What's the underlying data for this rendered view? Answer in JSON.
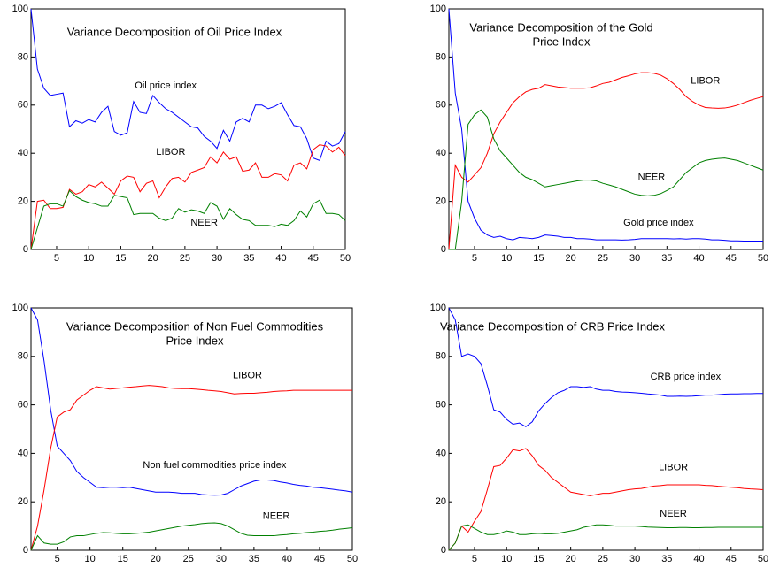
{
  "chart_data": [
    {
      "type": "line",
      "title": [
        "Variance Decomposition of Oil Price Index"
      ],
      "x": [
        1,
        2,
        3,
        4,
        5,
        6,
        7,
        8,
        9,
        10,
        11,
        12,
        13,
        14,
        15,
        16,
        17,
        18,
        19,
        20,
        21,
        22,
        23,
        24,
        25,
        26,
        27,
        28,
        29,
        30,
        31,
        32,
        33,
        34,
        35,
        36,
        37,
        38,
        39,
        40,
        41,
        42,
        43,
        44,
        45,
        46,
        47,
        48,
        49,
        50
      ],
      "xlim": [
        1,
        50
      ],
      "xticks": [
        5,
        10,
        15,
        20,
        25,
        30,
        35,
        40,
        45,
        50
      ],
      "ylim": [
        0,
        100
      ],
      "yticks": [
        0,
        20,
        40,
        60,
        80,
        100
      ],
      "series": [
        {
          "name": "Oil price index",
          "color": "#0000ff",
          "values": [
            100,
            75,
            67,
            64,
            64.5,
            65,
            51,
            53.5,
            52.5,
            54,
            53,
            57,
            59.5,
            49,
            47.5,
            48.5,
            61.5,
            57,
            56.5,
            64,
            61,
            58.5,
            57,
            55,
            53,
            51,
            50.5,
            47,
            45,
            42,
            49.5,
            45,
            53,
            54.5,
            53,
            60,
            60,
            58.5,
            59.5,
            61,
            56,
            51.5,
            51,
            46,
            38,
            37,
            45,
            43,
            44,
            49
          ]
        },
        {
          "name": "LIBOR",
          "color": "#ff0000",
          "values": [
            0,
            20,
            20.5,
            17,
            17,
            17.5,
            25,
            23,
            24,
            27,
            26,
            28,
            25.5,
            23,
            28.5,
            30.5,
            30,
            24,
            27.5,
            28.5,
            21.5,
            26,
            29.5,
            30,
            28,
            32,
            33,
            34,
            38.5,
            36,
            40.5,
            37.5,
            38.5,
            32.5,
            33,
            36,
            30,
            30,
            31.5,
            31,
            28.5,
            35,
            36,
            33.5,
            41.5,
            43.5,
            43,
            40.5,
            42.5,
            39
          ]
        },
        {
          "name": "NEER",
          "color": "#008000",
          "values": [
            0,
            9,
            18,
            19,
            19,
            18,
            24.5,
            22,
            20.5,
            19.5,
            19,
            18,
            18,
            22.5,
            22,
            21.5,
            14.5,
            15,
            15,
            15,
            13,
            12,
            13,
            17,
            15.5,
            16.5,
            16,
            15,
            19.5,
            18,
            12.5,
            17,
            14.5,
            12.5,
            12,
            10,
            10,
            10,
            9.5,
            10.5,
            10,
            12,
            16,
            13.5,
            19,
            20.5,
            15,
            15,
            14.5,
            12
          ]
        }
      ]
    },
    {
      "type": "line",
      "title": [
        "Variance Decomposition of the Gold",
        "Price Index"
      ],
      "x": [
        1,
        2,
        3,
        4,
        5,
        6,
        7,
        8,
        9,
        10,
        11,
        12,
        13,
        14,
        15,
        16,
        17,
        18,
        19,
        20,
        21,
        22,
        23,
        24,
        25,
        26,
        27,
        28,
        29,
        30,
        31,
        32,
        33,
        34,
        35,
        36,
        37,
        38,
        39,
        40,
        41,
        42,
        43,
        44,
        45,
        46,
        47,
        48,
        49,
        50
      ],
      "xlim": [
        1,
        50
      ],
      "xticks": [
        5,
        10,
        15,
        20,
        25,
        30,
        35,
        40,
        45,
        50
      ],
      "ylim": [
        0,
        100
      ],
      "yticks": [
        0,
        20,
        40,
        60,
        80,
        100
      ],
      "series": [
        {
          "name": "Gold price index",
          "color": "#0000ff",
          "values": [
            100,
            65,
            50,
            20,
            13,
            8,
            6,
            5,
            5.5,
            4.5,
            4,
            5,
            4.8,
            4.5,
            5,
            6,
            5.8,
            5.5,
            5,
            5,
            4.5,
            4.5,
            4.3,
            4,
            4,
            4,
            4,
            3.9,
            4,
            4.2,
            4.5,
            4.5,
            4.5,
            4.5,
            4.5,
            4.4,
            4.5,
            4.3,
            4.5,
            4.5,
            4.3,
            4,
            4,
            3.8,
            3.6,
            3.6,
            3.5,
            3.5,
            3.5,
            3.5
          ]
        },
        {
          "name": "LIBOR",
          "color": "#ff0000",
          "values": [
            0,
            35,
            30,
            28,
            31,
            34,
            40,
            48,
            53,
            57,
            61,
            63.5,
            65.5,
            66.5,
            67,
            68.5,
            68,
            67.5,
            67.3,
            67,
            67,
            67,
            67.2,
            68,
            69,
            69.5,
            70.5,
            71.5,
            72.2,
            73,
            73.5,
            73.5,
            73.2,
            72.5,
            71,
            69,
            66.5,
            63.5,
            61.5,
            60,
            59,
            58.8,
            58.7,
            58.8,
            59.3,
            60,
            61,
            62,
            62.8,
            63.5
          ]
        },
        {
          "name": "NEER",
          "color": "#008000",
          "values": [
            0,
            0,
            20,
            52,
            56,
            58,
            55,
            46,
            41,
            38,
            35,
            32,
            30,
            29,
            27.5,
            26,
            26.5,
            27,
            27.5,
            28,
            28.5,
            28.8,
            28.8,
            28.5,
            27.5,
            26.8,
            26,
            25,
            24,
            23,
            22.5,
            22.3,
            22.5,
            23.2,
            24.5,
            26,
            29,
            32,
            34,
            36,
            37,
            37.5,
            37.8,
            38,
            37.5,
            37,
            36,
            35,
            34,
            33
          ]
        }
      ]
    },
    {
      "type": "line",
      "title": [
        "Variance Decomposition of Non Fuel Commodities",
        "Price Index"
      ],
      "x": [
        1,
        2,
        3,
        4,
        5,
        6,
        7,
        8,
        9,
        10,
        11,
        12,
        13,
        14,
        15,
        16,
        17,
        18,
        19,
        20,
        21,
        22,
        23,
        24,
        25,
        26,
        27,
        28,
        29,
        30,
        31,
        32,
        33,
        34,
        35,
        36,
        37,
        38,
        39,
        40,
        41,
        42,
        43,
        44,
        45,
        46,
        47,
        48,
        49,
        50
      ],
      "xlim": [
        1,
        50
      ],
      "xticks": [
        5,
        10,
        15,
        20,
        25,
        30,
        35,
        40,
        45,
        50
      ],
      "ylim": [
        0,
        100
      ],
      "yticks": [
        0,
        20,
        40,
        60,
        80,
        100
      ],
      "series": [
        {
          "name": "Non fuel commodities price index",
          "color": "#0000ff",
          "values": [
            100,
            95,
            78,
            58,
            43,
            40,
            37,
            32.5,
            30,
            28,
            26,
            25.8,
            26,
            26,
            25.8,
            26,
            25.5,
            25,
            24.5,
            24,
            24,
            24,
            23.8,
            23.5,
            23.5,
            23.5,
            23,
            22.8,
            22.7,
            22.8,
            23.5,
            25,
            26.5,
            27.5,
            28.5,
            29,
            29,
            28.8,
            28.2,
            27.8,
            27.2,
            26.8,
            26.5,
            26,
            25.8,
            25.5,
            25.2,
            24.8,
            24.5,
            24
          ]
        },
        {
          "name": "LIBOR",
          "color": "#ff0000",
          "values": [
            0,
            10,
            25,
            42,
            55,
            57,
            58,
            62,
            64,
            66,
            67.5,
            67,
            66.5,
            66.8,
            67,
            67.3,
            67.5,
            67.8,
            68,
            67.8,
            67.5,
            67,
            66.8,
            66.7,
            66.7,
            66.5,
            66.3,
            66,
            65.8,
            65.5,
            65,
            64.5,
            64.7,
            64.8,
            64.8,
            65,
            65.2,
            65.5,
            65.7,
            65.8,
            66,
            66,
            66,
            66,
            66,
            66,
            66,
            66,
            66,
            66
          ]
        },
        {
          "name": "NEER",
          "color": "#008000",
          "values": [
            0,
            6,
            3,
            2.5,
            2.5,
            3.5,
            5.5,
            6,
            6,
            6.5,
            7,
            7.3,
            7.2,
            7,
            6.8,
            6.8,
            7,
            7.2,
            7.5,
            8,
            8.5,
            9,
            9.5,
            10,
            10.3,
            10.6,
            11,
            11.2,
            11.3,
            11,
            10,
            8.5,
            7,
            6.2,
            6,
            6,
            6,
            6,
            6.3,
            6.5,
            6.8,
            7,
            7.3,
            7.5,
            7.8,
            8,
            8.3,
            8.7,
            9,
            9.3
          ]
        }
      ]
    },
    {
      "type": "line",
      "title": [
        "Variance Decomposition of CRB Price Index"
      ],
      "x": [
        1,
        2,
        3,
        4,
        5,
        6,
        7,
        8,
        9,
        10,
        11,
        12,
        13,
        14,
        15,
        16,
        17,
        18,
        19,
        20,
        21,
        22,
        23,
        24,
        25,
        26,
        27,
        28,
        29,
        30,
        31,
        32,
        33,
        34,
        35,
        36,
        37,
        38,
        39,
        40,
        41,
        42,
        43,
        44,
        45,
        46,
        47,
        48,
        49,
        50
      ],
      "xlim": [
        1,
        50
      ],
      "xticks": [
        5,
        10,
        15,
        20,
        25,
        30,
        35,
        40,
        45,
        50
      ],
      "ylim": [
        0,
        100
      ],
      "yticks": [
        0,
        20,
        40,
        60,
        80,
        100
      ],
      "series": [
        {
          "name": "CRB price index",
          "color": "#0000ff",
          "values": [
            100,
            95,
            80,
            81,
            80,
            77,
            68,
            58,
            57,
            54,
            52,
            52.5,
            51,
            53,
            57.5,
            60.5,
            63,
            65,
            66,
            67.5,
            67.5,
            67.2,
            67.5,
            66.5,
            66,
            66,
            65.5,
            65.3,
            65.2,
            65,
            64.8,
            64.5,
            64.3,
            64,
            63.5,
            63.5,
            63.6,
            63.5,
            63.6,
            63.8,
            64,
            64,
            64.2,
            64.4,
            64.5,
            64.5,
            64.6,
            64.6,
            64.7,
            64.7
          ]
        },
        {
          "name": "LIBOR",
          "color": "#ff0000",
          "values": [
            0,
            3,
            10,
            7.5,
            12,
            16,
            25,
            34.5,
            35,
            38,
            41.5,
            41,
            42,
            39,
            35,
            33,
            30,
            28,
            26,
            24,
            23.5,
            23,
            22.5,
            23,
            23.5,
            23.5,
            24,
            24.5,
            25,
            25.3,
            25.5,
            26,
            26.5,
            26.7,
            27,
            27,
            27,
            27,
            27,
            27,
            26.8,
            26.7,
            26.4,
            26.2,
            26,
            25.8,
            25.5,
            25.3,
            25.2,
            25
          ]
        },
        {
          "name": "NEER",
          "color": "#008000",
          "values": [
            0,
            3,
            10,
            10.5,
            9,
            7.5,
            6.5,
            6.5,
            7,
            8,
            7.5,
            6.5,
            6.5,
            6.8,
            7,
            6.8,
            6.8,
            7,
            7.5,
            8,
            8.5,
            9.5,
            10,
            10.5,
            10.5,
            10.3,
            10,
            10,
            10,
            10,
            9.8,
            9.6,
            9.5,
            9.4,
            9.3,
            9.3,
            9.4,
            9.4,
            9.3,
            9.3,
            9.4,
            9.4,
            9.5,
            9.5,
            9.5,
            9.5,
            9.5,
            9.5,
            9.5,
            9.5
          ]
        }
      ]
    }
  ]
}
